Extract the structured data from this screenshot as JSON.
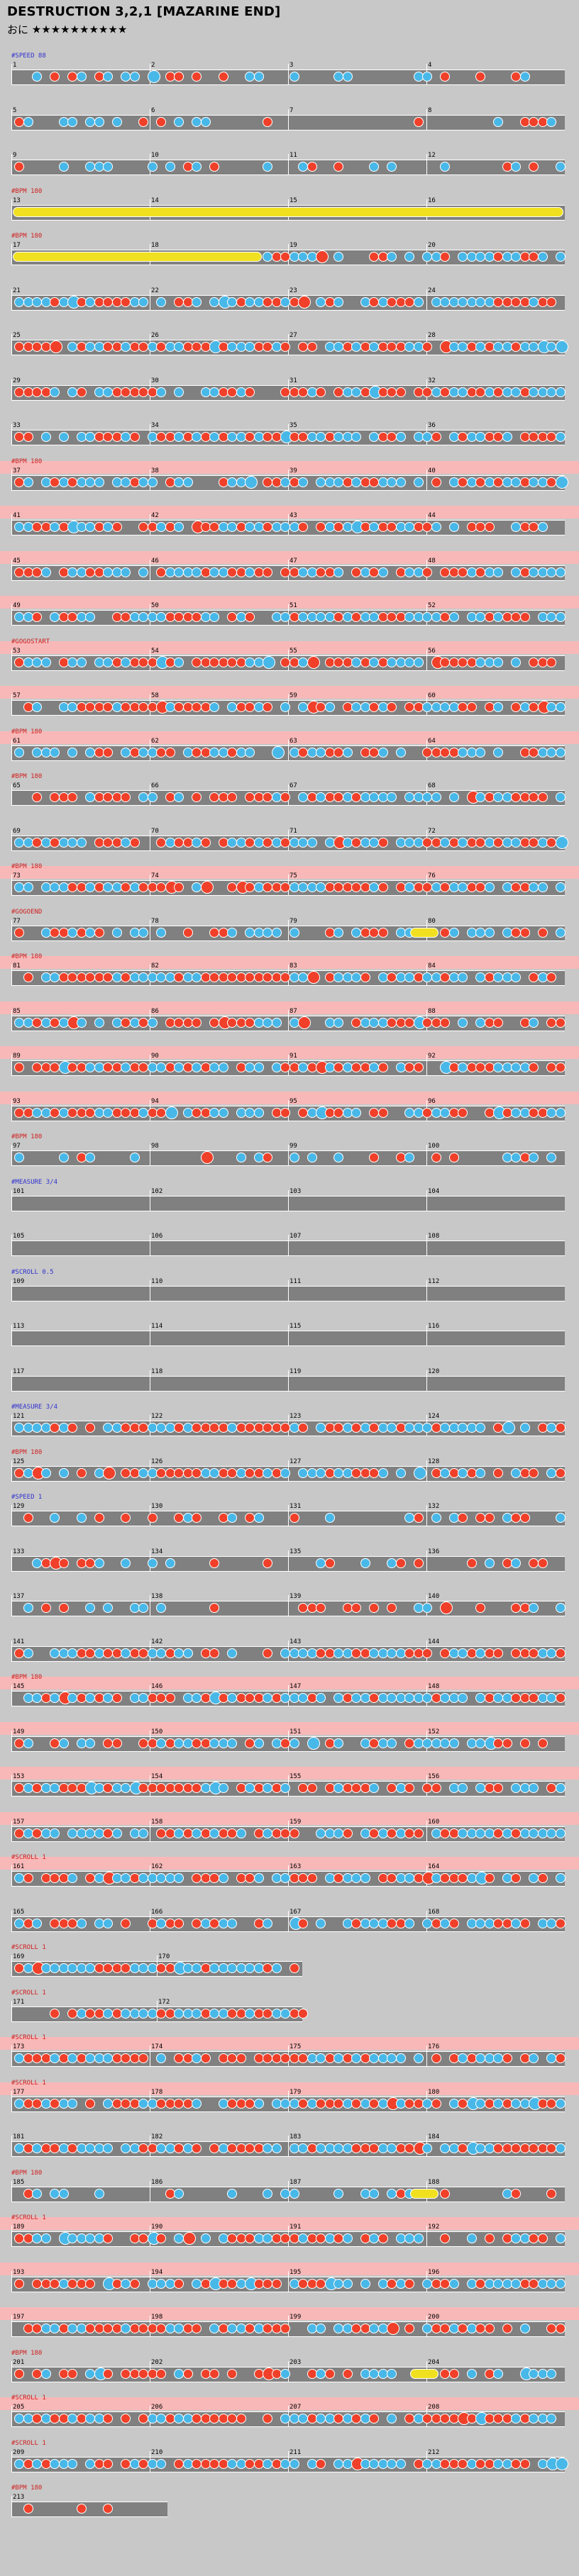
{
  "song_title": "DESTRUCTION 3,2,1 [MAZARINE END]",
  "difficulty_label": "おに",
  "difficulty_stars": "★★★★★★★★★★",
  "rows": [
    {
      "measures": [
        "1",
        "2",
        "3",
        "4"
      ],
      "events": [
        {
          "t": "#SPEED 88",
          "c": "#3030d0"
        }
      ],
      "pattern": "sparse"
    },
    {
      "measures": [
        "5",
        "6",
        "7",
        "8"
      ],
      "events": [],
      "pattern": "sparse"
    },
    {
      "measures": [
        "9",
        "10",
        "11",
        "12"
      ],
      "events": [],
      "pattern": "sparse"
    },
    {
      "measures": [
        "13",
        "14",
        "15",
        "16"
      ],
      "events": [
        {
          "t": "#BPM 180",
          "c": "#d02020"
        }
      ],
      "pattern": "roll"
    },
    {
      "measures": [
        "17",
        "18",
        "19",
        "20"
      ],
      "events": [
        {
          "t": "#BPM 180",
          "c": "#d02020"
        }
      ],
      "pattern": "roll-dense"
    },
    {
      "measures": [
        "21",
        "22",
        "23",
        "24"
      ],
      "events": [],
      "pattern": "dense"
    },
    {
      "measures": [
        "25",
        "26",
        "27",
        "28"
      ],
      "events": [],
      "pattern": "dense"
    },
    {
      "measures": [
        "29",
        "30",
        "31",
        "32"
      ],
      "events": [],
      "pattern": "dense"
    },
    {
      "measures": [
        "33",
        "34",
        "35",
        "36"
      ],
      "events": [],
      "pattern": "dense"
    },
    {
      "measures": [
        "37",
        "38",
        "39",
        "40"
      ],
      "events": [
        {
          "t": "#BPM 180",
          "c": "#d02020"
        }
      ],
      "pattern": "gogo"
    },
    {
      "measures": [
        "41",
        "42",
        "43",
        "44"
      ],
      "events": [],
      "pattern": "gogo"
    },
    {
      "measures": [
        "45",
        "46",
        "47",
        "48"
      ],
      "events": [],
      "pattern": "gogo"
    },
    {
      "measures": [
        "49",
        "50",
        "51",
        "52"
      ],
      "events": [],
      "pattern": "gogo"
    },
    {
      "measures": [
        "53",
        "54",
        "55",
        "56"
      ],
      "events": [
        {
          "t": "#GOGOSTART",
          "c": "#d02020"
        }
      ],
      "pattern": "gogo"
    },
    {
      "measures": [
        "57",
        "58",
        "59",
        "60"
      ],
      "events": [],
      "pattern": "gogo"
    },
    {
      "measures": [
        "61",
        "62",
        "63",
        "64"
      ],
      "events": [
        {
          "t": "#BPM 180",
          "c": "#d02020"
        }
      ],
      "pattern": "gogo"
    },
    {
      "measures": [
        "65",
        "66",
        "67",
        "68"
      ],
      "events": [
        {
          "t": "#BPM 180",
          "c": "#d02020"
        }
      ],
      "pattern": "dense"
    },
    {
      "measures": [
        "69",
        "70",
        "71",
        "72"
      ],
      "events": [],
      "pattern": "dense"
    },
    {
      "measures": [
        "73",
        "74",
        "75",
        "76"
      ],
      "events": [
        {
          "t": "#BPM 180",
          "c": "#d02020"
        }
      ],
      "pattern": "gogo"
    },
    {
      "measures": [
        "77",
        "78",
        "79",
        "80"
      ],
      "events": [
        {
          "t": "#GOGOEND",
          "c": "#d02020"
        }
      ],
      "pattern": "dense-roll"
    },
    {
      "measures": [
        "81",
        "82",
        "83",
        "84"
      ],
      "events": [
        {
          "t": "#BPM 180",
          "c": "#d02020"
        }
      ],
      "pattern": "gogo"
    },
    {
      "measures": [
        "85",
        "86",
        "87",
        "88"
      ],
      "events": [],
      "pattern": "gogo"
    },
    {
      "measures": [
        "89",
        "90",
        "91",
        "92"
      ],
      "events": [],
      "pattern": "gogo"
    },
    {
      "measures": [
        "93",
        "94",
        "95",
        "96"
      ],
      "events": [],
      "pattern": "gogo"
    },
    {
      "measures": [
        "97",
        "98",
        "99",
        "100"
      ],
      "events": [
        {
          "t": "#BPM 180",
          "c": "#d02020"
        }
      ],
      "pattern": "sparse"
    },
    {
      "measures": [
        "101",
        "102",
        "103",
        "104"
      ],
      "events": [
        {
          "t": "#MEASURE 3/4",
          "c": "#3030d0"
        }
      ],
      "pattern": "empty"
    },
    {
      "measures": [
        "105",
        "106",
        "107",
        "108"
      ],
      "events": [],
      "pattern": "empty"
    },
    {
      "measures": [
        "109",
        "110",
        "111",
        "112"
      ],
      "events": [
        {
          "t": "#SCROLL 0.5",
          "c": "#3030d0"
        }
      ],
      "pattern": "empty"
    },
    {
      "measures": [
        "113",
        "114",
        "115",
        "116"
      ],
      "events": [],
      "pattern": "empty"
    },
    {
      "measures": [
        "117",
        "118",
        "119",
        "120"
      ],
      "events": [],
      "pattern": "empty"
    },
    {
      "measures": [
        "121",
        "122",
        "123",
        "124"
      ],
      "events": [
        {
          "t": "#MEASURE 3/4",
          "c": "#3030d0"
        }
      ],
      "pattern": "split"
    },
    {
      "measures": [
        "125",
        "126",
        "127",
        "128"
      ],
      "events": [
        {
          "t": "#BPM 180",
          "c": "#d02020"
        }
      ],
      "pattern": "split"
    },
    {
      "measures": [
        "129",
        "130",
        "131",
        "132"
      ],
      "events": [
        {
          "t": "#SPEED 1",
          "c": "#3030d0"
        }
      ],
      "pattern": "sparse"
    },
    {
      "measures": [
        "133",
        "134",
        "135",
        "136"
      ],
      "events": [],
      "pattern": "sparse"
    },
    {
      "measures": [
        "137",
        "138",
        "139",
        "140"
      ],
      "events": [],
      "pattern": "sparse"
    },
    {
      "measures": [
        "141",
        "142",
        "143",
        "144"
      ],
      "events": [],
      "pattern": "dense"
    },
    {
      "measures": [
        "145",
        "146",
        "147",
        "148"
      ],
      "events": [
        {
          "t": "#BPM 180",
          "c": "#d02020"
        }
      ],
      "pattern": "gogo"
    },
    {
      "measures": [
        "149",
        "150",
        "151",
        "152"
      ],
      "events": [],
      "pattern": "gogo"
    },
    {
      "measures": [
        "153",
        "154",
        "155",
        "156"
      ],
      "events": [],
      "pattern": "gogo"
    },
    {
      "measures": [
        "157",
        "158",
        "159",
        "160"
      ],
      "events": [],
      "pattern": "gogo"
    },
    {
      "measures": [
        "161",
        "162",
        "163",
        "164"
      ],
      "events": [
        {
          "t": "#SCROLL 1",
          "c": "#d02020"
        }
      ],
      "pattern": "gogo"
    },
    {
      "measures": [
        "165",
        "166",
        "167",
        "168"
      ],
      "events": [],
      "pattern": "dense"
    },
    {
      "measures": [
        "169",
        "170"
      ],
      "events": [
        {
          "t": "#SCROLL 1",
          "c": "#d02020"
        }
      ],
      "pattern": "half"
    },
    {
      "measures": [
        "171",
        "172"
      ],
      "events": [
        {
          "t": "#SCROLL 1",
          "c": "#d02020"
        }
      ],
      "pattern": "half"
    },
    {
      "measures": [
        "173",
        "174",
        "175",
        "176"
      ],
      "events": [
        {
          "t": "#SCROLL 1",
          "c": "#d02020"
        }
      ],
      "pattern": "gogo"
    },
    {
      "measures": [
        "177",
        "178",
        "179",
        "180"
      ],
      "events": [
        {
          "t": "#SCROLL 1",
          "c": "#d02020"
        }
      ],
      "pattern": "gogo"
    },
    {
      "measures": [
        "181",
        "182",
        "183",
        "184"
      ],
      "events": [],
      "pattern": "dense"
    },
    {
      "measures": [
        "185",
        "186",
        "187",
        "188"
      ],
      "events": [
        {
          "t": "#BPM 180",
          "c": "#d02020"
        }
      ],
      "pattern": "sparse-roll"
    },
    {
      "measures": [
        "189",
        "190",
        "191",
        "192"
      ],
      "events": [
        {
          "t": "#SCROLL 1",
          "c": "#d02020"
        }
      ],
      "pattern": "gogo"
    },
    {
      "measures": [
        "193",
        "194",
        "195",
        "196"
      ],
      "events": [],
      "pattern": "gogo"
    },
    {
      "measures": [
        "197",
        "198",
        "199",
        "200"
      ],
      "events": [],
      "pattern": "gogo"
    },
    {
      "measures": [
        "201",
        "202",
        "203",
        "204"
      ],
      "events": [
        {
          "t": "#BPM 180",
          "c": "#d02020"
        }
      ],
      "pattern": "dense-roll"
    },
    {
      "measures": [
        "205",
        "206",
        "207",
        "208"
      ],
      "events": [
        {
          "t": "#SCROLL 1",
          "c": "#d02020"
        }
      ],
      "pattern": "gogo"
    },
    {
      "measures": [
        "209",
        "210",
        "211",
        "212"
      ],
      "events": [
        {
          "t": "#SCROLL 1",
          "c": "#d02020"
        }
      ],
      "pattern": "dense"
    },
    {
      "measures": [
        "213"
      ],
      "events": [
        {
          "t": "#BPM 180",
          "c": "#d02020"
        }
      ],
      "pattern": "end"
    }
  ],
  "colors": {
    "don": "#f0402a",
    "ka": "#48b8e8",
    "lane": "#808080",
    "gogo": "#f8b8b8",
    "roll": "#f0e020"
  }
}
